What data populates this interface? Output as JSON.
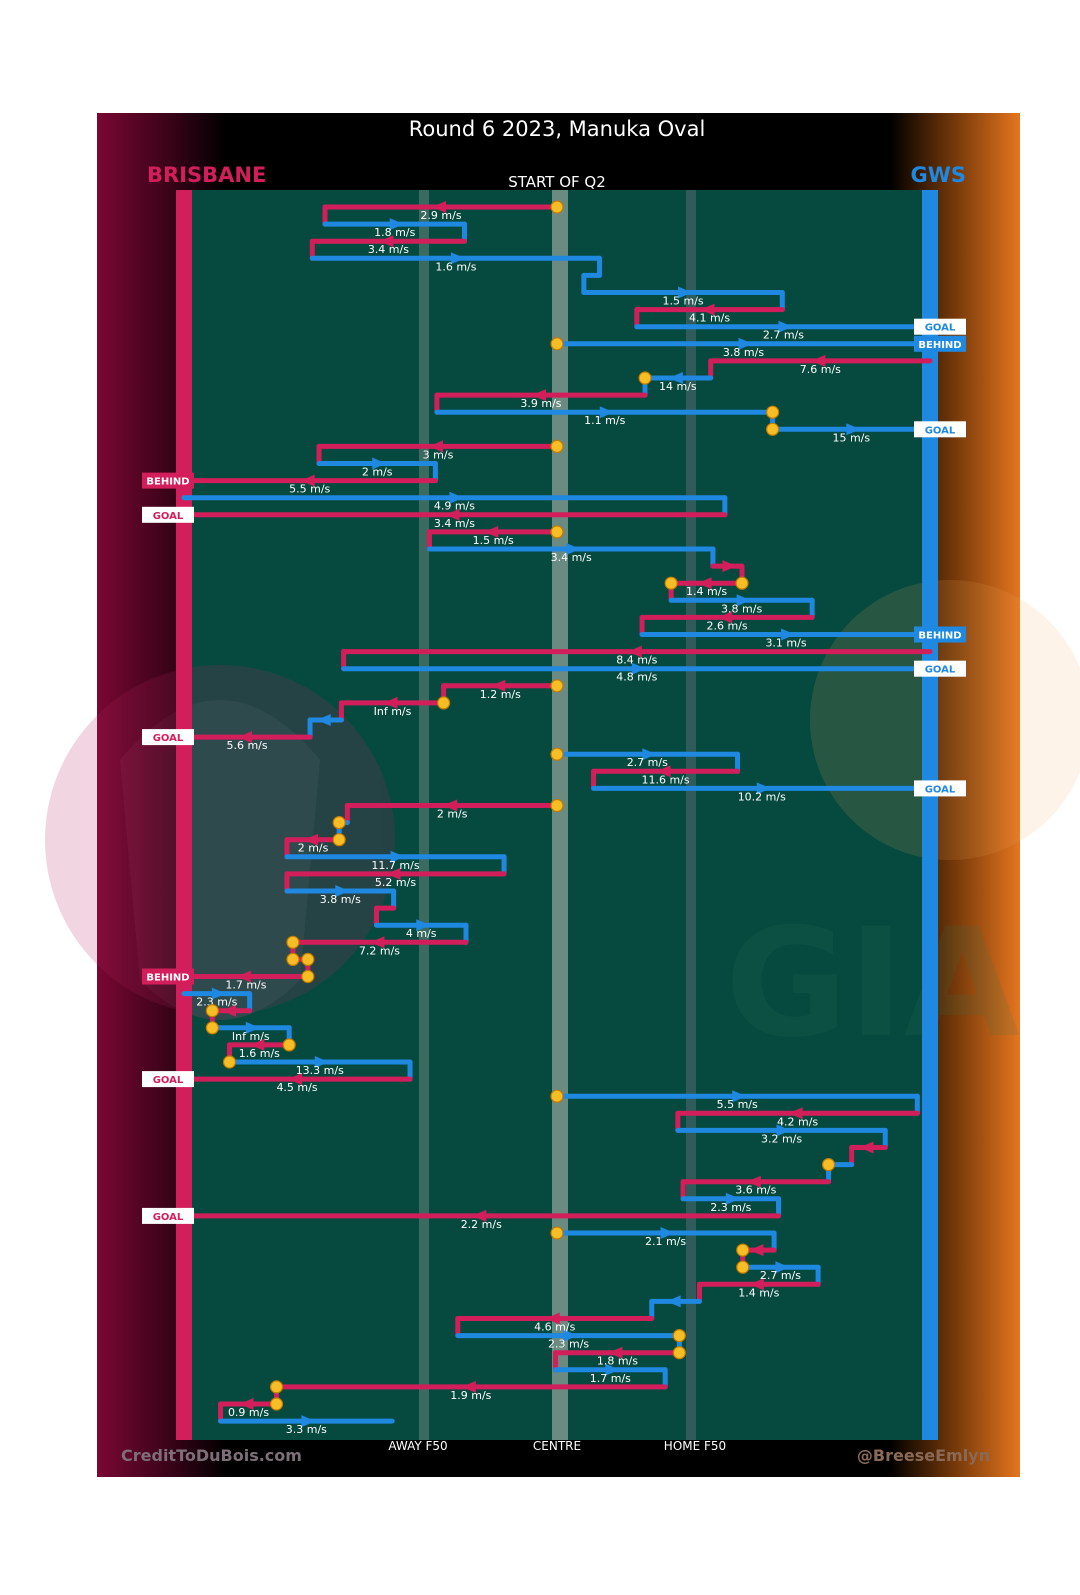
{
  "header": {
    "title": "Round 6 2023, Manuka Oval",
    "subtitle": "START OF Q2",
    "team_left": "BRISBANE",
    "team_right": "GWS"
  },
  "footer": {
    "credit_left": "CreditToDuBois.com",
    "credit_right": "@BreeseEmlyn",
    "axis_labels": [
      "AWAY F50",
      "CENTRE",
      "HOME F50"
    ]
  },
  "colors": {
    "brisbane": "#d21f5b",
    "gws": "#1f88e0",
    "field": "#064a3f",
    "stoppage": "#f7bd24",
    "left_bg": "#7a0733",
    "right_bg": "#e5751f"
  },
  "watermarks": {
    "left_logo": "lion-crest",
    "right_logo": "GIA"
  },
  "chart_data": {
    "type": "timeline",
    "title": "Round 6 2023, Manuka Oval",
    "subtitle": "START OF Q2",
    "x_axis": {
      "unit": "ground position (0 = Brisbane goal, 100 = GWS goal)",
      "range": [
        0,
        100
      ],
      "ticks": [
        {
          "label": "AWAY F50",
          "value": 31.5
        },
        {
          "label": "CENTRE",
          "value": 50
        },
        {
          "label": "HOME F50",
          "value": 68.5
        }
      ]
    },
    "legend": [
      {
        "team": "BRISBANE",
        "side": "left"
      },
      {
        "team": "GWS",
        "side": "right"
      }
    ],
    "rows": [
      {
        "team": "BRI",
        "from": 50,
        "to": 18.9,
        "label": "2.9 m/s",
        "start": "stoppage"
      },
      {
        "team": "GWS",
        "from": 18.9,
        "to": 37.6,
        "label": "1.8 m/s"
      },
      {
        "team": "BRI",
        "from": 37.6,
        "to": 17.2,
        "label": "3.4 m/s"
      },
      {
        "team": "GWS",
        "from": 17.2,
        "to": 55.7,
        "label": "1.6 m/s"
      },
      {
        "team": "GWS",
        "from": 55.7,
        "to": 53.6,
        "label": ""
      },
      {
        "team": "GWS",
        "from": 53.6,
        "to": 80.2,
        "label": "1.5 m/s"
      },
      {
        "team": "BRI",
        "from": 80.2,
        "to": 60.7,
        "label": "4.1 m/s"
      },
      {
        "team": "GWS",
        "from": 60.7,
        "to": 100,
        "label": "2.7 m/s",
        "result": "GOAL"
      },
      {
        "team": "GWS",
        "from": 50,
        "to": 100,
        "label": "3.8 m/s",
        "start": "stoppage",
        "result": "BEHIND"
      },
      {
        "team": "BRI",
        "from": 100,
        "to": 70.6,
        "label": "7.6 m/s"
      },
      {
        "team": "GWS",
        "from": 70.6,
        "to": 61.8,
        "label": "14 m/s",
        "end": "stoppage"
      },
      {
        "team": "BRI",
        "from": 61.8,
        "to": 33.9,
        "label": "3.9 m/s"
      },
      {
        "team": "GWS",
        "from": 33.9,
        "to": 78.9,
        "label": "1.1 m/s",
        "end": "stoppage"
      },
      {
        "team": "GWS",
        "from": 78.9,
        "to": 100,
        "label": "15 m/s",
        "start": "stoppage",
        "result": "GOAL"
      },
      {
        "team": "BRI",
        "from": 50,
        "to": 18.1,
        "label": "3 m/s",
        "start": "stoppage"
      },
      {
        "team": "GWS",
        "from": 18.1,
        "to": 33.7,
        "label": "2 m/s"
      },
      {
        "team": "BRI",
        "from": 33.7,
        "to": 0,
        "label": "5.5 m/s",
        "result": "BEHIND"
      },
      {
        "team": "GWS",
        "from": 0,
        "to": 72.5,
        "label": "4.9 m/s"
      },
      {
        "team": "BRI",
        "from": 72.5,
        "to": 0,
        "label": "3.4 m/s",
        "result": "GOAL"
      },
      {
        "team": "BRI",
        "from": 50,
        "to": 32.9,
        "label": "1.5 m/s",
        "start": "stoppage"
      },
      {
        "team": "GWS",
        "from": 32.9,
        "to": 70.9,
        "label": "3.4 m/s"
      },
      {
        "team": "BRI",
        "from": 70.9,
        "to": 74.8,
        "label": ""
      },
      {
        "team": "BRI",
        "from": 74.8,
        "to": 65.3,
        "label": "1.4 m/s",
        "start": "stoppage",
        "end": "stoppage"
      },
      {
        "team": "GWS",
        "from": 65.3,
        "to": 84.2,
        "label": "3.8 m/s"
      },
      {
        "team": "BRI",
        "from": 84.2,
        "to": 61.4,
        "label": "2.6 m/s"
      },
      {
        "team": "GWS",
        "from": 61.4,
        "to": 100,
        "label": "3.1 m/s",
        "result": "BEHIND"
      },
      {
        "team": "BRI",
        "from": 100,
        "to": 21.4,
        "label": "8.4 m/s"
      },
      {
        "team": "GWS",
        "from": 21.4,
        "to": 100,
        "label": "4.8 m/s",
        "result": "GOAL"
      },
      {
        "team": "BRI",
        "from": 50,
        "to": 34.8,
        "label": "1.2 m/s",
        "start": "stoppage"
      },
      {
        "team": "BRI",
        "from": 34.8,
        "to": 21.1,
        "label": "Inf m/s",
        "start": "stoppage"
      },
      {
        "team": "GWS",
        "from": 21.1,
        "to": 16.9,
        "label": ""
      },
      {
        "team": "BRI",
        "from": 16.9,
        "to": 0,
        "label": "5.6 m/s",
        "result": "GOAL"
      },
      {
        "team": "GWS",
        "from": 50,
        "to": 74.2,
        "label": "2.7 m/s",
        "start": "stoppage"
      },
      {
        "team": "BRI",
        "from": 74.2,
        "to": 54.9,
        "label": "11.6 m/s"
      },
      {
        "team": "GWS",
        "from": 54.9,
        "to": 100,
        "label": "10.2 m/s",
        "result": "GOAL"
      },
      {
        "team": "BRI",
        "from": 50,
        "to": 21.9,
        "label": "2 m/s",
        "start": "stoppage"
      },
      {
        "team": "GWS",
        "from": 21.9,
        "to": 20.8,
        "label": "",
        "end": "stoppage"
      },
      {
        "team": "BRI",
        "from": 20.8,
        "to": 13.8,
        "label": "2 m/s",
        "start": "stoppage"
      },
      {
        "team": "GWS",
        "from": 13.8,
        "to": 42.9,
        "label": "11.7 m/s"
      },
      {
        "team": "BRI",
        "from": 42.9,
        "to": 13.8,
        "label": "5.2 m/s"
      },
      {
        "team": "GWS",
        "from": 13.8,
        "to": 28.1,
        "label": "3.8 m/s"
      },
      {
        "team": "BRI",
        "from": 28.1,
        "to": 25.8,
        "label": ""
      },
      {
        "team": "GWS",
        "from": 25.8,
        "to": 37.8,
        "label": "4 m/s"
      },
      {
        "team": "BRI",
        "from": 37.8,
        "to": 14.6,
        "label": "7.2 m/s",
        "end": "stoppage"
      },
      {
        "team": "BRI",
        "from": 14.6,
        "to": 16.6,
        "label": "",
        "start": "stoppage",
        "end": "stoppage"
      },
      {
        "team": "BRI",
        "from": 16.6,
        "to": 0,
        "label": "1.7 m/s",
        "start": "stoppage",
        "result": "BEHIND"
      },
      {
        "team": "GWS",
        "from": 0,
        "to": 8.8,
        "label": "2.3 m/s"
      },
      {
        "team": "BRI",
        "from": 8.8,
        "to": 3.8,
        "label": "",
        "end": "stoppage"
      },
      {
        "team": "GWS",
        "from": 3.8,
        "to": 14.1,
        "label": "Inf m/s",
        "start": "stoppage"
      },
      {
        "team": "BRI",
        "from": 14.1,
        "to": 6.1,
        "label": "1.6 m/s",
        "start": "stoppage"
      },
      {
        "team": "GWS",
        "from": 6.1,
        "to": 30.3,
        "label": "13.3 m/s",
        "start": "stoppage"
      },
      {
        "team": "BRI",
        "from": 30.3,
        "to": 0,
        "label": "4.5 m/s",
        "result": "GOAL"
      },
      {
        "team": "GWS",
        "from": 50,
        "to": 98.3,
        "label": "5.5 m/s",
        "start": "stoppage"
      },
      {
        "team": "BRI",
        "from": 98.3,
        "to": 66.2,
        "label": "4.2 m/s"
      },
      {
        "team": "GWS",
        "from": 66.2,
        "to": 94.0,
        "label": "3.2 m/s"
      },
      {
        "team": "BRI",
        "from": 94.0,
        "to": 89.5,
        "label": ""
      },
      {
        "team": "GWS",
        "from": 89.5,
        "to": 86.4,
        "label": "",
        "end": "stoppage"
      },
      {
        "team": "BRI",
        "from": 86.4,
        "to": 66.9,
        "label": "3.6 m/s"
      },
      {
        "team": "GWS",
        "from": 66.9,
        "to": 79.7,
        "label": "2.3 m/s"
      },
      {
        "team": "BRI",
        "from": 79.7,
        "to": 0,
        "label": "2.2 m/s",
        "result": "GOAL"
      },
      {
        "team": "GWS",
        "from": 50,
        "to": 79.1,
        "label": "2.1 m/s",
        "start": "stoppage"
      },
      {
        "team": "BRI",
        "from": 79.1,
        "to": 74.9,
        "label": "",
        "end": "stoppage"
      },
      {
        "team": "GWS",
        "from": 74.9,
        "to": 85.0,
        "label": "2.7 m/s",
        "start": "stoppage"
      },
      {
        "team": "BRI",
        "from": 85.0,
        "to": 69.1,
        "label": "1.4 m/s"
      },
      {
        "team": "GWS",
        "from": 69.1,
        "to": 62.7,
        "label": ""
      },
      {
        "team": "BRI",
        "from": 62.7,
        "to": 36.7,
        "label": "4.6 m/s"
      },
      {
        "team": "GWS",
        "from": 36.7,
        "to": 66.4,
        "label": "2.3 m/s",
        "end": "stoppage"
      },
      {
        "team": "BRI",
        "from": 66.4,
        "to": 49.8,
        "label": "1.8 m/s",
        "start": "stoppage"
      },
      {
        "team": "GWS",
        "from": 49.8,
        "to": 64.5,
        "label": "1.7 m/s"
      },
      {
        "team": "BRI",
        "from": 64.5,
        "to": 12.4,
        "label": "1.9 m/s",
        "end": "stoppage"
      },
      {
        "team": "BRI",
        "from": 12.4,
        "to": 4.9,
        "label": "0.9 m/s",
        "start": "stoppage"
      },
      {
        "team": "GWS",
        "from": 4.9,
        "to": 27.9,
        "label": "3.3 m/s"
      }
    ]
  }
}
